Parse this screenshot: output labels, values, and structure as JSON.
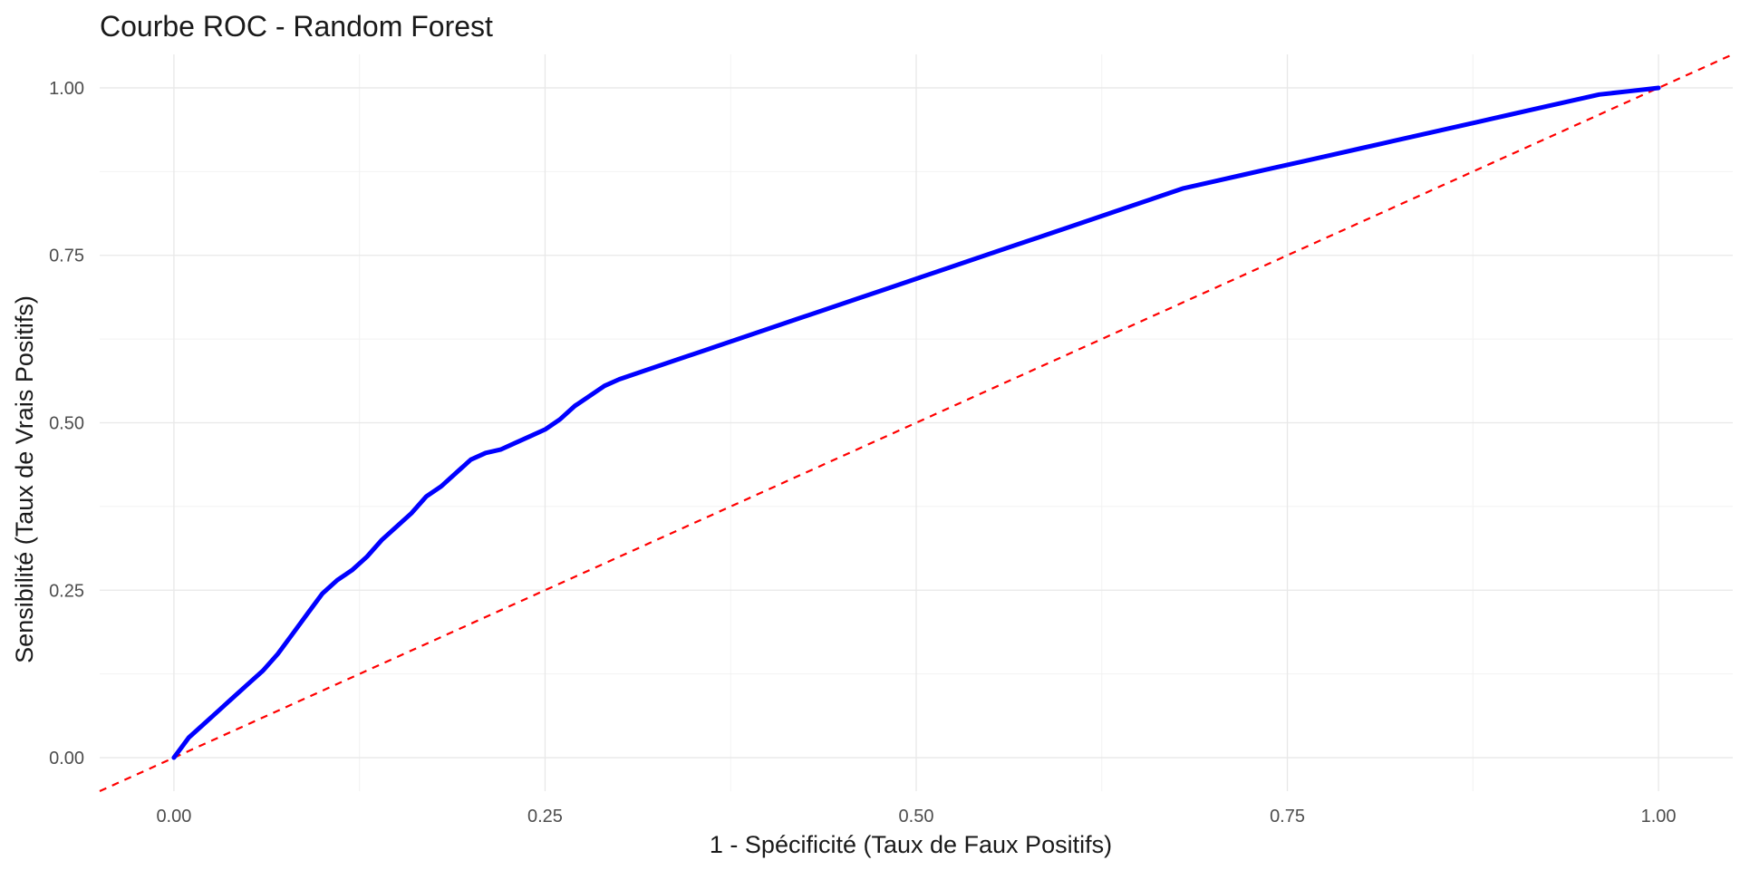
{
  "chart_data": {
    "type": "line",
    "title": "Courbe ROC - Random Forest",
    "xlabel": "1 - Spécificité (Taux de Faux Positifs)",
    "ylabel": "Sensibilité (Taux de Vrais Positifs)",
    "xlim": [
      -0.05,
      1.05
    ],
    "ylim": [
      -0.05,
      1.05
    ],
    "x_ticks": [
      0,
      0.25,
      0.5,
      0.75,
      1
    ],
    "x_tick_labels": [
      "0.00",
      "0.25",
      "0.50",
      "0.75",
      "1.00"
    ],
    "y_ticks": [
      0,
      0.25,
      0.5,
      0.75,
      1
    ],
    "y_tick_labels": [
      "0.00",
      "0.25",
      "0.50",
      "0.75",
      "1.00"
    ],
    "grid": true,
    "series": [
      {
        "style": "solid",
        "color": "#0000ff",
        "x": [
          0,
          0.005,
          0.01,
          0.02,
          0.03,
          0.04,
          0.05,
          0.06,
          0.07,
          0.08,
          0.09,
          0.1,
          0.11,
          0.12,
          0.13,
          0.14,
          0.15,
          0.16,
          0.17,
          0.18,
          0.19,
          0.2,
          0.21,
          0.22,
          0.23,
          0.24,
          0.25,
          0.26,
          0.27,
          0.28,
          0.29,
          0.3,
          0.32,
          0.34,
          0.36,
          0.38,
          0.4,
          0.42,
          0.44,
          0.46,
          0.48,
          0.5,
          0.52,
          0.54,
          0.56,
          0.58,
          0.6,
          0.62,
          0.64,
          0.66,
          0.68,
          0.7,
          0.72,
          0.74,
          0.76,
          0.78,
          0.8,
          0.82,
          0.84,
          0.86,
          0.88,
          0.9,
          0.92,
          0.94,
          0.96,
          0.98,
          1.0
        ],
        "y": [
          0,
          0.015,
          0.03,
          0.05,
          0.07,
          0.09,
          0.11,
          0.13,
          0.155,
          0.185,
          0.215,
          0.245,
          0.265,
          0.28,
          0.3,
          0.325,
          0.345,
          0.365,
          0.39,
          0.405,
          0.425,
          0.445,
          0.455,
          0.46,
          0.47,
          0.48,
          0.49,
          0.505,
          0.525,
          0.54,
          0.555,
          0.565,
          0.58,
          0.595,
          0.61,
          0.625,
          0.64,
          0.655,
          0.67,
          0.685,
          0.7,
          0.715,
          0.73,
          0.745,
          0.76,
          0.775,
          0.79,
          0.805,
          0.82,
          0.835,
          0.85,
          0.86,
          0.87,
          0.88,
          0.89,
          0.9,
          0.91,
          0.92,
          0.93,
          0.94,
          0.95,
          0.96,
          0.97,
          0.98,
          0.99,
          0.995,
          1.0
        ]
      },
      {
        "style": "dashed",
        "color": "#ff0000",
        "x": [
          -0.05,
          1.05
        ],
        "y": [
          -0.05,
          1.05
        ]
      }
    ]
  }
}
